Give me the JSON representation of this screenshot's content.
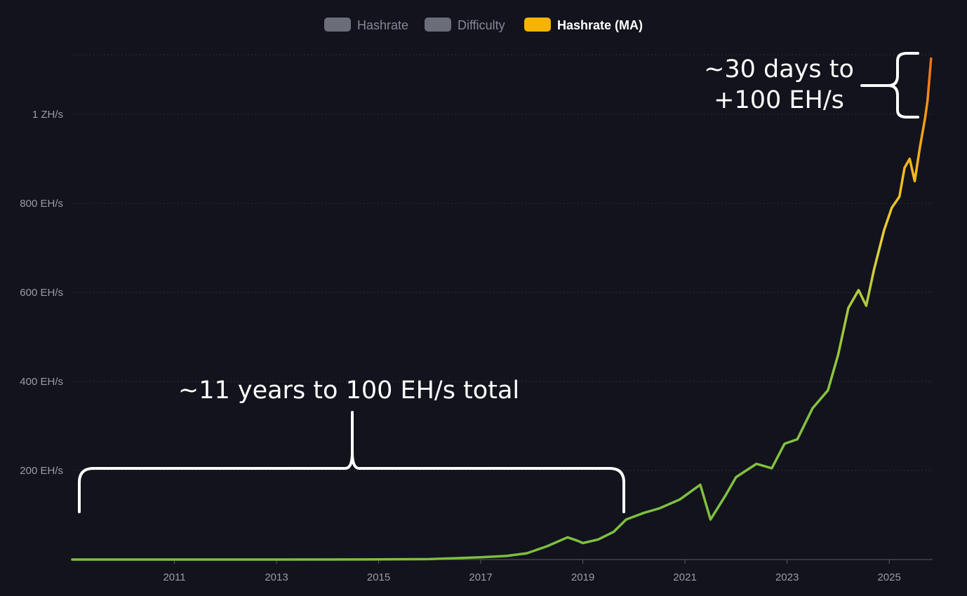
{
  "legend": {
    "items": [
      {
        "label": "Hashrate",
        "color": "#6b6d78",
        "active": false
      },
      {
        "label": "Difficulty",
        "color": "#6b6d78",
        "active": false
      },
      {
        "label": "Hashrate (MA)",
        "color": "#f5b400",
        "active": true
      }
    ]
  },
  "annotations": {
    "left_brace_text": "~11 years to 100 EH/s total",
    "right_brace_text_line1": "~30 days to",
    "right_brace_text_line2": "+100 EH/s"
  },
  "chart_data": {
    "type": "line",
    "title": "",
    "xlabel": "",
    "ylabel": "",
    "xlim": [
      2009.0,
      2025.85
    ],
    "ylim": [
      0,
      1130
    ],
    "x_ticks": [
      2011,
      2013,
      2015,
      2017,
      2019,
      2021,
      2023,
      2025
    ],
    "y_ticks": [
      {
        "value": 200,
        "label": "200 EH/s"
      },
      {
        "value": 400,
        "label": "400 EH/s"
      },
      {
        "value": 600,
        "label": "600 EH/s"
      },
      {
        "value": 800,
        "label": "800 EH/s"
      },
      {
        "value": 1000,
        "label": "1 ZH/s"
      }
    ],
    "grid": true,
    "legend_position": "top-center",
    "series": [
      {
        "name": "Hashrate (MA)",
        "points": [
          [
            2009.0,
            0
          ],
          [
            2013.0,
            0
          ],
          [
            2015.0,
            0.3
          ],
          [
            2016.0,
            1
          ],
          [
            2017.0,
            5
          ],
          [
            2017.5,
            8
          ],
          [
            2017.9,
            14
          ],
          [
            2018.3,
            30
          ],
          [
            2018.7,
            50
          ],
          [
            2018.9,
            42
          ],
          [
            2019.0,
            37
          ],
          [
            2019.3,
            45
          ],
          [
            2019.6,
            62
          ],
          [
            2019.85,
            90
          ],
          [
            2020.2,
            105
          ],
          [
            2020.5,
            115
          ],
          [
            2020.9,
            135
          ],
          [
            2021.3,
            168
          ],
          [
            2021.5,
            90
          ],
          [
            2021.8,
            145
          ],
          [
            2022.0,
            185
          ],
          [
            2022.4,
            215
          ],
          [
            2022.7,
            205
          ],
          [
            2022.95,
            260
          ],
          [
            2023.2,
            270
          ],
          [
            2023.5,
            340
          ],
          [
            2023.8,
            380
          ],
          [
            2024.0,
            460
          ],
          [
            2024.2,
            565
          ],
          [
            2024.4,
            605
          ],
          [
            2024.55,
            570
          ],
          [
            2024.7,
            650
          ],
          [
            2024.9,
            740
          ],
          [
            2025.05,
            790
          ],
          [
            2025.2,
            815
          ],
          [
            2025.3,
            880
          ],
          [
            2025.4,
            900
          ],
          [
            2025.5,
            850
          ],
          [
            2025.6,
            925
          ],
          [
            2025.7,
            990
          ],
          [
            2025.75,
            1030
          ],
          [
            2025.82,
            1125
          ]
        ]
      }
    ]
  }
}
